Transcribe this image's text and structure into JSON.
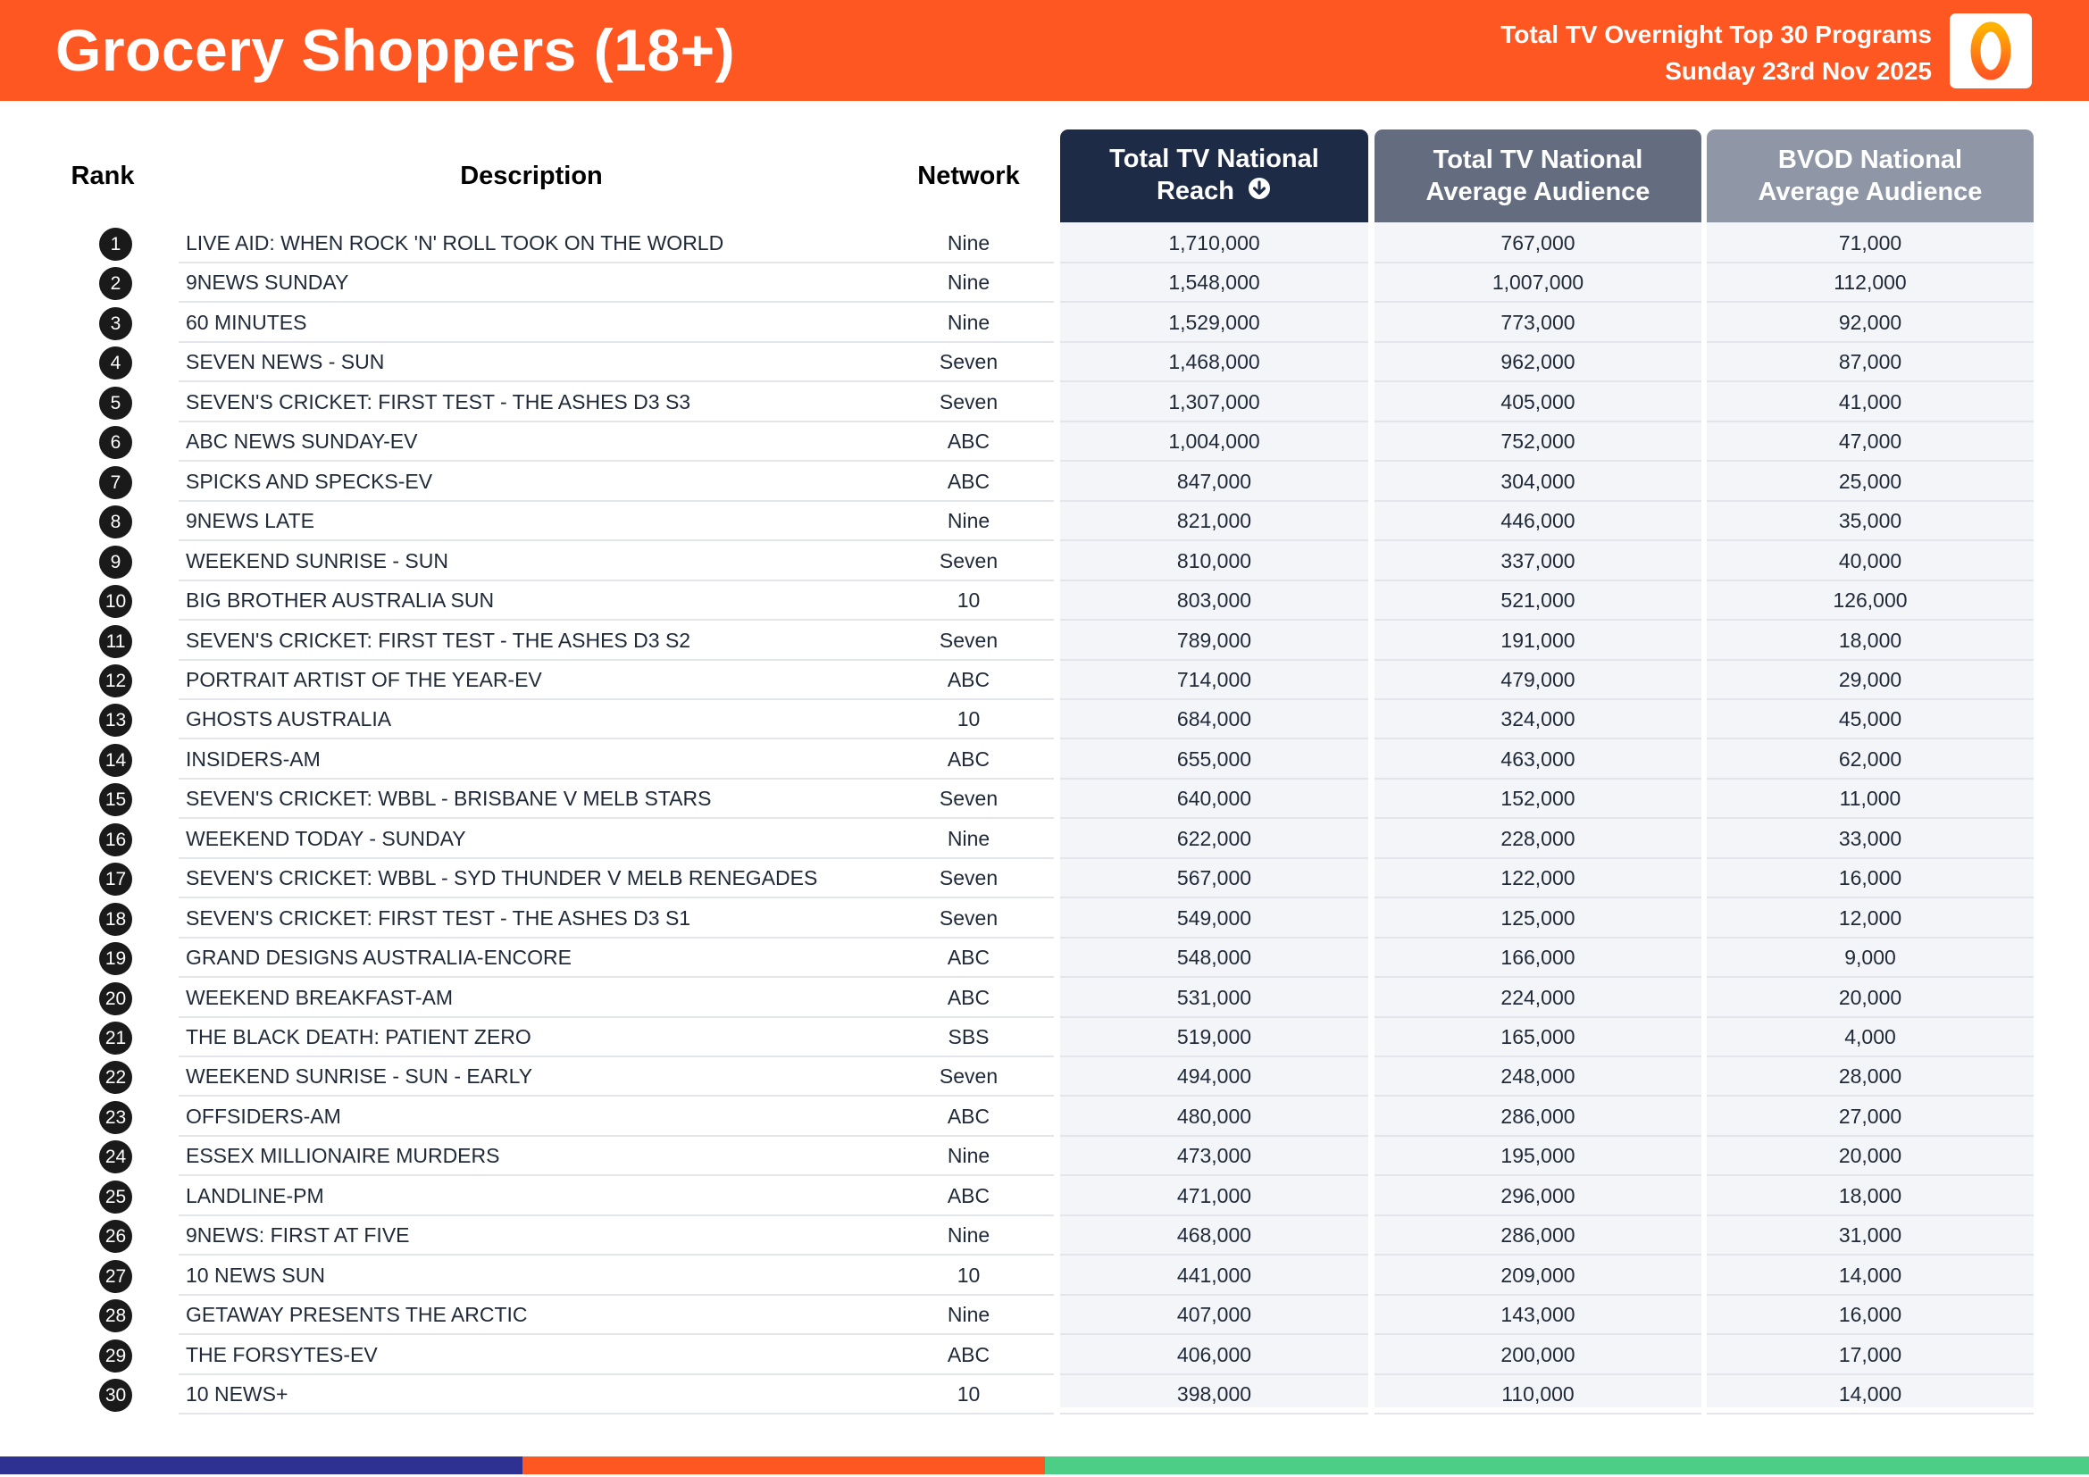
{
  "header": {
    "title": "Grocery Shoppers (18+)",
    "subtitle_line1": "Total TV Overnight Top 30 Programs",
    "subtitle_line2": "Sunday 23rd Nov 2025",
    "logo_icon": "oztam-logo-icon",
    "accent_color": "#ff5722"
  },
  "table": {
    "columns": {
      "rank": "Rank",
      "description": "Description",
      "network": "Network",
      "reach_line1": "Total TV National",
      "reach_line2": "Reach",
      "avg_line1": "Total TV National",
      "avg_line2": "Average Audience",
      "bvod_line1": "BVOD National",
      "bvod_line2": "Average Audience"
    },
    "rows": [
      {
        "rank": "1",
        "description": "LIVE AID: WHEN ROCK 'N' ROLL TOOK ON THE WORLD",
        "network": "Nine",
        "reach": "1,710,000",
        "avg": "767,000",
        "bvod": "71,000"
      },
      {
        "rank": "2",
        "description": "9NEWS SUNDAY",
        "network": "Nine",
        "reach": "1,548,000",
        "avg": "1,007,000",
        "bvod": "112,000"
      },
      {
        "rank": "3",
        "description": "60 MINUTES",
        "network": "Nine",
        "reach": "1,529,000",
        "avg": "773,000",
        "bvod": "92,000"
      },
      {
        "rank": "4",
        "description": "SEVEN NEWS - SUN",
        "network": "Seven",
        "reach": "1,468,000",
        "avg": "962,000",
        "bvod": "87,000"
      },
      {
        "rank": "5",
        "description": "SEVEN'S CRICKET: FIRST TEST - THE ASHES D3 S3",
        "network": "Seven",
        "reach": "1,307,000",
        "avg": "405,000",
        "bvod": "41,000"
      },
      {
        "rank": "6",
        "description": "ABC NEWS SUNDAY-EV",
        "network": "ABC",
        "reach": "1,004,000",
        "avg": "752,000",
        "bvod": "47,000"
      },
      {
        "rank": "7",
        "description": "SPICKS AND SPECKS-EV",
        "network": "ABC",
        "reach": "847,000",
        "avg": "304,000",
        "bvod": "25,000"
      },
      {
        "rank": "8",
        "description": "9NEWS LATE",
        "network": "Nine",
        "reach": "821,000",
        "avg": "446,000",
        "bvod": "35,000"
      },
      {
        "rank": "9",
        "description": "WEEKEND SUNRISE - SUN",
        "network": "Seven",
        "reach": "810,000",
        "avg": "337,000",
        "bvod": "40,000"
      },
      {
        "rank": "10",
        "description": "BIG BROTHER AUSTRALIA SUN",
        "network": "10",
        "reach": "803,000",
        "avg": "521,000",
        "bvod": "126,000"
      },
      {
        "rank": "11",
        "description": "SEVEN'S CRICKET: FIRST TEST - THE ASHES D3 S2",
        "network": "Seven",
        "reach": "789,000",
        "avg": "191,000",
        "bvod": "18,000"
      },
      {
        "rank": "12",
        "description": "PORTRAIT ARTIST OF THE YEAR-EV",
        "network": "ABC",
        "reach": "714,000",
        "avg": "479,000",
        "bvod": "29,000"
      },
      {
        "rank": "13",
        "description": "GHOSTS AUSTRALIA",
        "network": "10",
        "reach": "684,000",
        "avg": "324,000",
        "bvod": "45,000"
      },
      {
        "rank": "14",
        "description": "INSIDERS-AM",
        "network": "ABC",
        "reach": "655,000",
        "avg": "463,000",
        "bvod": "62,000"
      },
      {
        "rank": "15",
        "description": "SEVEN'S CRICKET: WBBL - BRISBANE V MELB STARS",
        "network": "Seven",
        "reach": "640,000",
        "avg": "152,000",
        "bvod": "11,000"
      },
      {
        "rank": "16",
        "description": "WEEKEND TODAY - SUNDAY",
        "network": "Nine",
        "reach": "622,000",
        "avg": "228,000",
        "bvod": "33,000"
      },
      {
        "rank": "17",
        "description": "SEVEN'S CRICKET: WBBL - SYD THUNDER V MELB RENEGADES",
        "network": "Seven",
        "reach": "567,000",
        "avg": "122,000",
        "bvod": "16,000"
      },
      {
        "rank": "18",
        "description": "SEVEN'S CRICKET: FIRST TEST - THE ASHES D3 S1",
        "network": "Seven",
        "reach": "549,000",
        "avg": "125,000",
        "bvod": "12,000"
      },
      {
        "rank": "19",
        "description": "GRAND DESIGNS AUSTRALIA-ENCORE",
        "network": "ABC",
        "reach": "548,000",
        "avg": "166,000",
        "bvod": "9,000"
      },
      {
        "rank": "20",
        "description": "WEEKEND BREAKFAST-AM",
        "network": "ABC",
        "reach": "531,000",
        "avg": "224,000",
        "bvod": "20,000"
      },
      {
        "rank": "21",
        "description": "THE BLACK DEATH: PATIENT ZERO",
        "network": "SBS",
        "reach": "519,000",
        "avg": "165,000",
        "bvod": "4,000"
      },
      {
        "rank": "22",
        "description": "WEEKEND SUNRISE - SUN - EARLY",
        "network": "Seven",
        "reach": "494,000",
        "avg": "248,000",
        "bvod": "28,000"
      },
      {
        "rank": "23",
        "description": "OFFSIDERS-AM",
        "network": "ABC",
        "reach": "480,000",
        "avg": "286,000",
        "bvod": "27,000"
      },
      {
        "rank": "24",
        "description": "ESSEX MILLIONAIRE MURDERS",
        "network": "Nine",
        "reach": "473,000",
        "avg": "195,000",
        "bvod": "20,000"
      },
      {
        "rank": "25",
        "description": "LANDLINE-PM",
        "network": "ABC",
        "reach": "471,000",
        "avg": "296,000",
        "bvod": "18,000"
      },
      {
        "rank": "26",
        "description": "9NEWS: FIRST AT FIVE",
        "network": "Nine",
        "reach": "468,000",
        "avg": "286,000",
        "bvod": "31,000"
      },
      {
        "rank": "27",
        "description": "10 NEWS SUN",
        "network": "10",
        "reach": "441,000",
        "avg": "209,000",
        "bvod": "14,000"
      },
      {
        "rank": "28",
        "description": "GETAWAY PRESENTS THE ARCTIC",
        "network": "Nine",
        "reach": "407,000",
        "avg": "143,000",
        "bvod": "16,000"
      },
      {
        "rank": "29",
        "description": "THE FORSYTES-EV",
        "network": "ABC",
        "reach": "406,000",
        "avg": "200,000",
        "bvod": "17,000"
      },
      {
        "rank": "30",
        "description": "10 NEWS+",
        "network": "10",
        "reach": "398,000",
        "avg": "110,000",
        "bvod": "14,000"
      }
    ]
  },
  "colors": {
    "reach_header": "#1e2b47",
    "avg_header": "#646c80",
    "bvod_header": "#8f97a6",
    "footer_stripes": [
      "#2e3192",
      "#ff5722",
      "#4cce86"
    ]
  }
}
